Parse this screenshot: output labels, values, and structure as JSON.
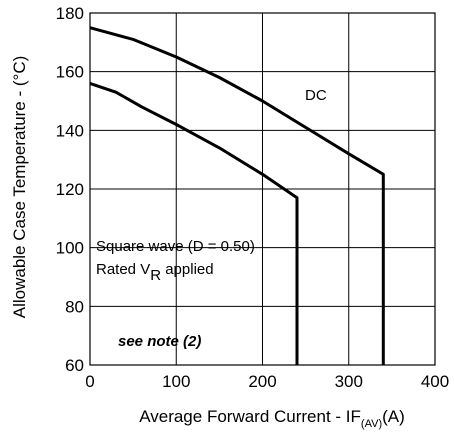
{
  "chart_data": {
    "type": "line",
    "xlabel": "Average Forward Current - IF",
    "xlabel_sub": "(AV)",
    "xlabel_unit": "(A)",
    "ylabel": "Allowable Case Temperature - (°C)",
    "xlim": [
      0,
      400
    ],
    "ylim": [
      60,
      180
    ],
    "xticks": [
      "0",
      "100",
      "200",
      "300",
      "400"
    ],
    "yticks": [
      "60",
      "80",
      "100",
      "120",
      "140",
      "160",
      "180"
    ],
    "grid": true,
    "series": [
      {
        "name": "DC",
        "points": [
          [
            0,
            175
          ],
          [
            50,
            171
          ],
          [
            100,
            165
          ],
          [
            150,
            158
          ],
          [
            200,
            150
          ],
          [
            250,
            141
          ],
          [
            300,
            132
          ],
          [
            340,
            125
          ],
          [
            340,
            60
          ]
        ]
      },
      {
        "name": "",
        "points": [
          [
            0,
            156
          ],
          [
            30,
            153
          ],
          [
            60,
            148
          ],
          [
            100,
            142
          ],
          [
            150,
            134
          ],
          [
            200,
            125
          ],
          [
            240,
            117
          ],
          [
            240,
            60
          ]
        ]
      }
    ],
    "annotations": {
      "dc_label": "DC",
      "square_wave": "Square wave (D = 0.50)",
      "rated_prefix": "Rated V",
      "rated_sub": "R",
      "rated_suffix": " applied",
      "note": "see note (2)"
    }
  }
}
